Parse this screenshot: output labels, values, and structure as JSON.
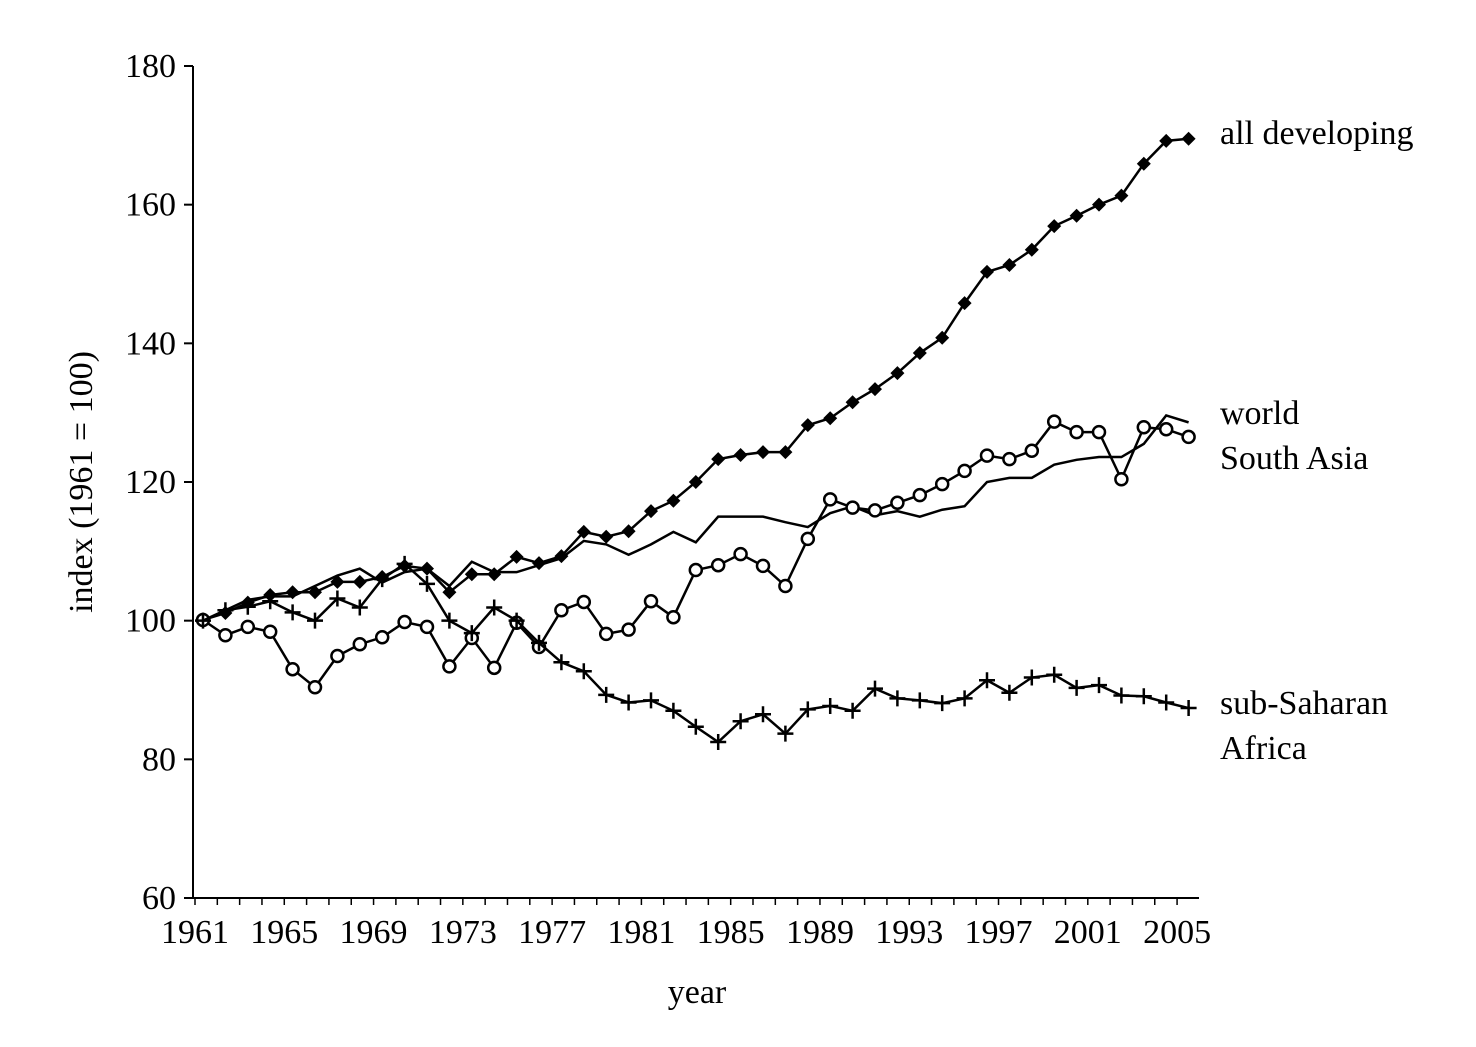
{
  "chart_data": {
    "type": "line",
    "title": "",
    "xlabel": "year",
    "ylabel": "index (1961 = 100)",
    "ylim": [
      60,
      180
    ],
    "yticks": [
      60,
      80,
      100,
      120,
      140,
      160,
      180
    ],
    "xticks": [
      1961,
      1965,
      1969,
      1973,
      1977,
      1981,
      1985,
      1989,
      1993,
      1997,
      2001,
      2005
    ],
    "x_start": 1961,
    "grid": false,
    "series": [
      {
        "name": "all developing",
        "label_lines": [
          "all developing"
        ],
        "marker": "diamond",
        "values": [
          100.1,
          101.1,
          102.6,
          103.7,
          104.1,
          104.1,
          105.6,
          105.6,
          106.3,
          107.9,
          107.5,
          104.1,
          106.7,
          106.7,
          109.2,
          108.3,
          109.3,
          112.8,
          112.1,
          112.9,
          115.8,
          117.3,
          120.0,
          123.3,
          123.9,
          124.3,
          124.3,
          128.2,
          129.2,
          131.5,
          133.4,
          135.7,
          138.6,
          140.8,
          145.8,
          150.3,
          151.3,
          153.5,
          156.9,
          158.4,
          160.0,
          161.3,
          165.9,
          169.2,
          169.5
        ]
      },
      {
        "name": "world",
        "label_lines": [
          "world"
        ],
        "marker": "none",
        "values": [
          100,
          101.5,
          103,
          103.5,
          103.5,
          105,
          106.5,
          107.5,
          105.5,
          107,
          107.5,
          105,
          108.5,
          107,
          107,
          108,
          109,
          111.5,
          111,
          109.5,
          111,
          112.8,
          111.3,
          115,
          115,
          115,
          114.2,
          113.5,
          115.5,
          116.5,
          115.2,
          115.8,
          115,
          116,
          116.5,
          120,
          120.6,
          120.6,
          122.5,
          123.2,
          123.6,
          123.6,
          125.5,
          129.6,
          128.6
        ]
      },
      {
        "name": "South Asia",
        "label_lines": [
          "South Asia"
        ],
        "marker": "circle",
        "values": [
          100.1,
          97.9,
          99.1,
          98.4,
          93.0,
          90.4,
          94.9,
          96.6,
          97.6,
          99.8,
          99.1,
          93.4,
          97.5,
          93.2,
          99.7,
          96.2,
          101.5,
          102.7,
          98.1,
          98.7,
          102.8,
          100.5,
          107.3,
          108.0,
          109.6,
          107.9,
          105.0,
          111.8,
          117.5,
          116.3,
          115.9,
          117.0,
          118.1,
          119.7,
          121.6,
          123.8,
          123.3,
          124.5,
          128.7,
          127.2,
          127.2,
          120.4,
          127.9,
          127.6,
          126.5
        ]
      },
      {
        "name": "sub-Saharan Africa",
        "label_lines": [
          "sub-Saharan",
          "Africa"
        ],
        "marker": "plus",
        "values": [
          100,
          101.5,
          102,
          102.8,
          101.2,
          100,
          103.2,
          101.9,
          106,
          108.2,
          105.3,
          100,
          98.2,
          101.9,
          100,
          96.8,
          94,
          92.7,
          89.3,
          88.2,
          88.5,
          87,
          84.7,
          82.5,
          85.5,
          86.5,
          83.7,
          87.2,
          87.7,
          87,
          90.2,
          88.8,
          88.5,
          88.1,
          88.8,
          91.4,
          89.6,
          91.8,
          92.2,
          90.3,
          90.7,
          89.2,
          89.1,
          88.2,
          87.4
        ]
      }
    ]
  }
}
